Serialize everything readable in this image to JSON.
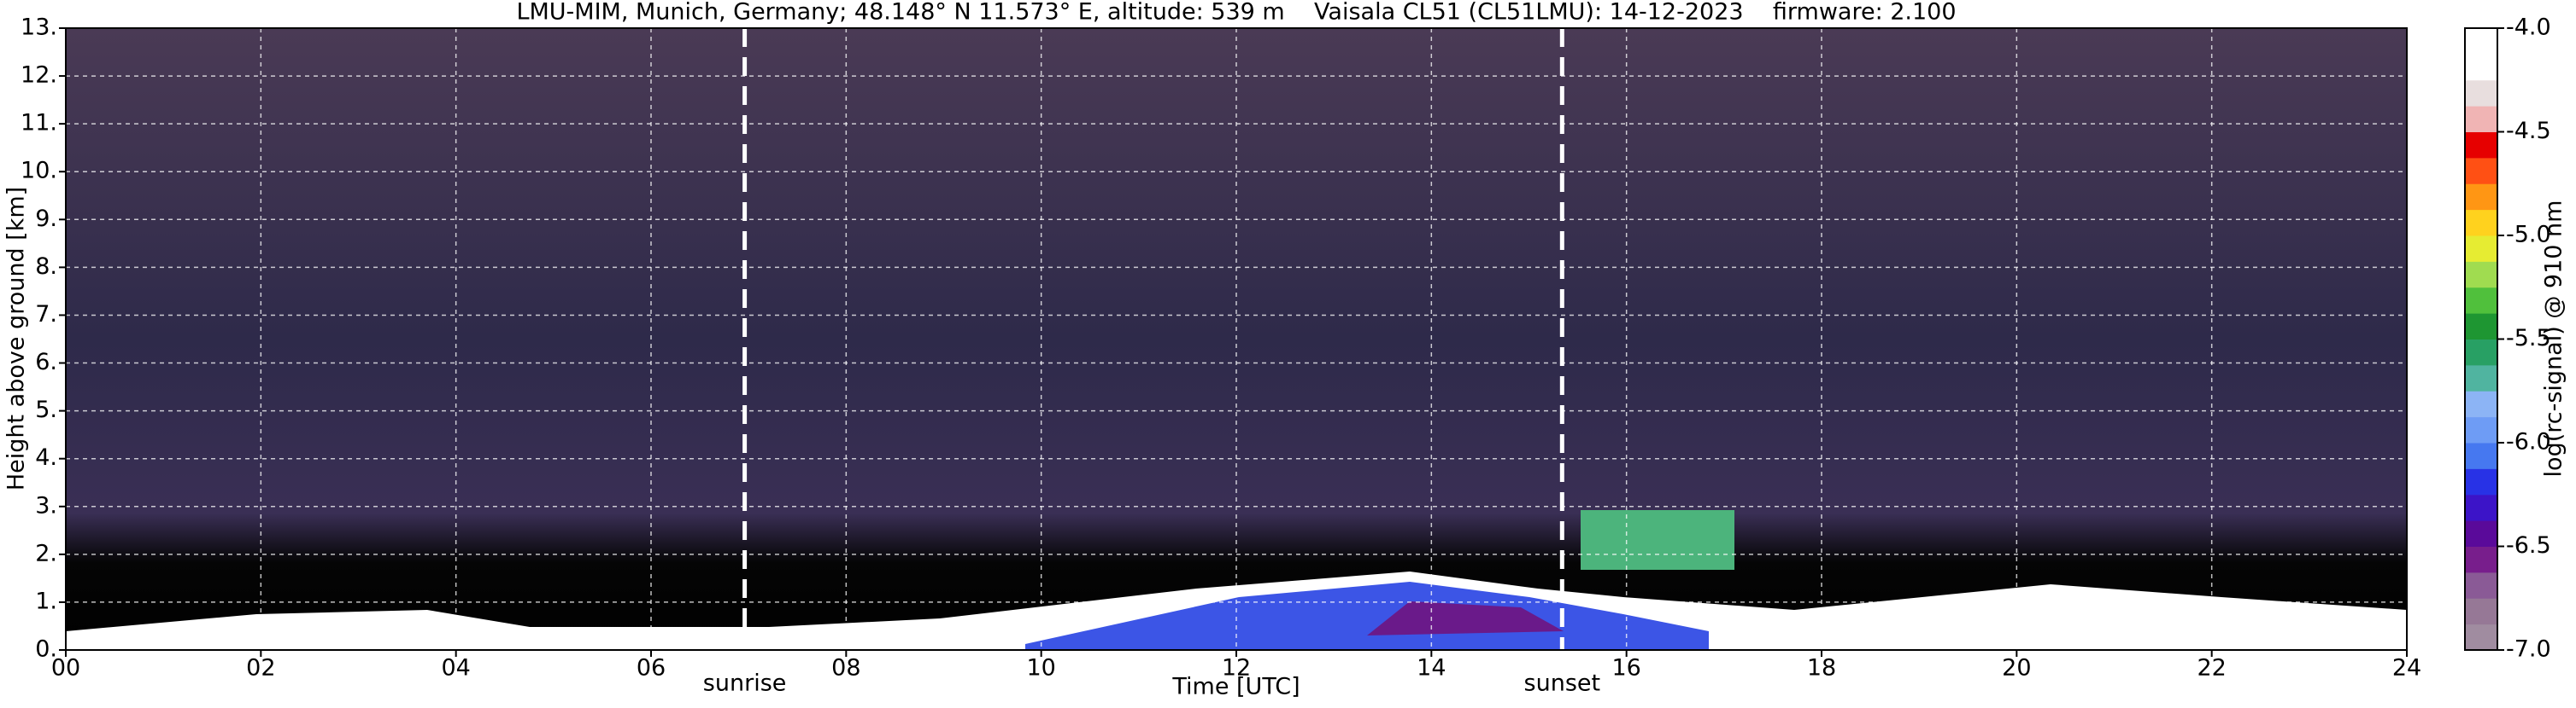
{
  "chart_data": {
    "type": "heatmap",
    "title": "LMU-MIM, Munich, Germany; 48.148° N 11.573° E, altitude: 539 m    Vaisala CL51 (CL51LMU): 14-12-2023    firmware: 2.100",
    "x_label": "Time [UTC]",
    "y_label": "Height above ground [km]",
    "xlim": [
      0,
      24
    ],
    "ylim": [
      0,
      13
    ],
    "xticks": [
      {
        "value": 0,
        "label": "00"
      },
      {
        "value": 2,
        "label": "02"
      },
      {
        "value": 4,
        "label": "04"
      },
      {
        "value": 6,
        "label": "06"
      },
      {
        "value": 8,
        "label": "08"
      },
      {
        "value": 10,
        "label": "10"
      },
      {
        "value": 12,
        "label": "12"
      },
      {
        "value": 14,
        "label": "14"
      },
      {
        "value": 16,
        "label": "16"
      },
      {
        "value": 18,
        "label": "18"
      },
      {
        "value": 20,
        "label": "20"
      },
      {
        "value": 22,
        "label": "22"
      },
      {
        "value": 24,
        "label": "24"
      }
    ],
    "yticks": [
      {
        "value": 0,
        "label": "0."
      },
      {
        "value": 1,
        "label": "1."
      },
      {
        "value": 2,
        "label": "2."
      },
      {
        "value": 3,
        "label": "3."
      },
      {
        "value": 4,
        "label": "4."
      },
      {
        "value": 5,
        "label": "5."
      },
      {
        "value": 6,
        "label": "6."
      },
      {
        "value": 7,
        "label": "7."
      },
      {
        "value": 8,
        "label": "8."
      },
      {
        "value": 9,
        "label": "9."
      },
      {
        "value": 10,
        "label": "10."
      },
      {
        "value": 11,
        "label": "11."
      },
      {
        "value": 12,
        "label": "12."
      },
      {
        "value": 13,
        "label": "13."
      }
    ],
    "grid": true,
    "annotations": [
      {
        "text": "sunrise",
        "x": 6.96
      },
      {
        "text": "sunset",
        "x": 15.34
      }
    ],
    "colorbar": {
      "label": "log(rc-signal) @ 910 nm",
      "lim": [
        -7,
        -4
      ],
      "ticks": [
        {
          "value": -4,
          "label": "-4.0"
        },
        {
          "value": -4.5,
          "label": "-4.5"
        },
        {
          "value": -5,
          "label": "-5.0"
        },
        {
          "value": -5.5,
          "label": "-5.5"
        },
        {
          "value": -6,
          "label": "-6.0"
        },
        {
          "value": -6.5,
          "label": "-6.5"
        },
        {
          "value": -7,
          "label": "-7.0"
        }
      ],
      "colors": [
        "#a08ca0",
        "#967896",
        "#8a5a96",
        "#781e8c",
        "#5a0a9a",
        "#3c14c8",
        "#2832e6",
        "#4678f0",
        "#6e9cf5",
        "#8cb4f5",
        "#50b4a0",
        "#28a064",
        "#1e9632",
        "#50c03c",
        "#a0dc50",
        "#e6ec32",
        "#ffd21e",
        "#ff9614",
        "#ff5014",
        "#e60000",
        "#f0b4b4",
        "#e8dede",
        "#ffffff",
        "#ffffff"
      ]
    }
  }
}
